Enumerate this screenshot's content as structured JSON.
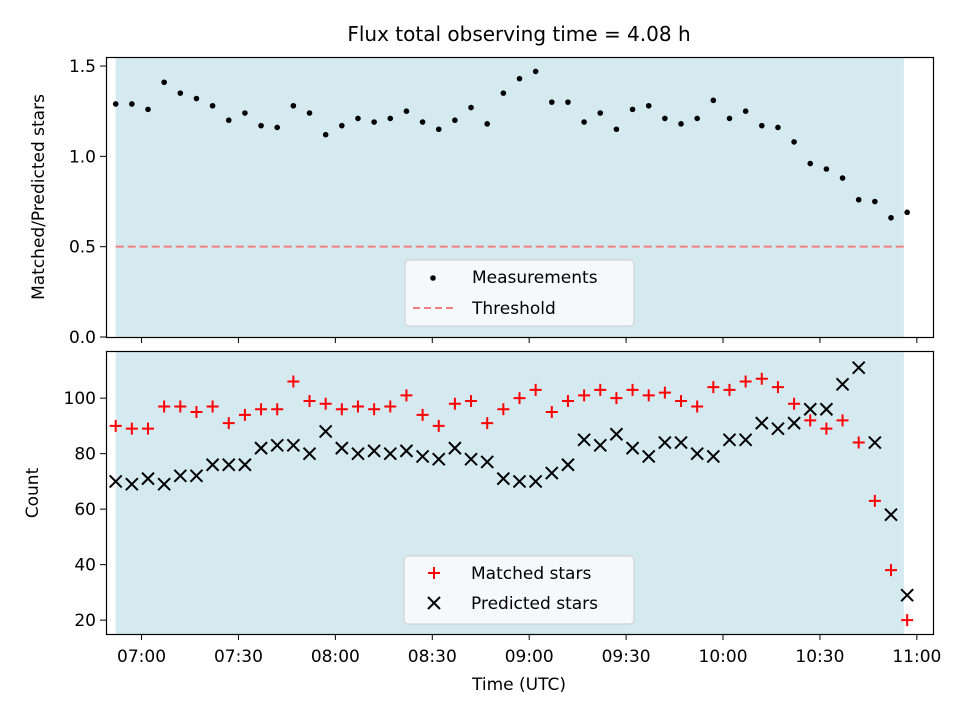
{
  "title": "Flux total observing time = 4.08 h",
  "xlabel": "Time (UTC)",
  "x_tick_labels": [
    "07:00",
    "07:30",
    "08:00",
    "08:30",
    "09:00",
    "09:30",
    "10:00",
    "10:30",
    "11:00"
  ],
  "colors": {
    "span": "#d4eaf0",
    "threshold": "#f08080",
    "matched": "#ff0000",
    "predicted": "#000000",
    "measurement": "#000000"
  },
  "chart_data": [
    {
      "type": "scatter",
      "name": "ratio",
      "ylabel": "Matched/Predicted stars",
      "ylim": [
        0,
        1.55
      ],
      "y_ticks": [
        0,
        0.5,
        1.0,
        1.5
      ],
      "y_tick_labels": [
        "0.0",
        "0.5",
        "1.0",
        "1.5"
      ],
      "xlim": [
        "06:49",
        "11:05"
      ],
      "shaded_span": [
        "06:52",
        "10:56"
      ],
      "legend": "bottom-center",
      "legend_labels": [
        "Measurements",
        "Threshold"
      ],
      "threshold": 0.5,
      "x": [
        "06:52",
        "06:57",
        "07:02",
        "07:07",
        "07:12",
        "07:17",
        "07:22",
        "07:27",
        "07:32",
        "07:37",
        "07:42",
        "07:47",
        "07:52",
        "07:57",
        "08:02",
        "08:07",
        "08:12",
        "08:17",
        "08:22",
        "08:27",
        "08:32",
        "08:37",
        "08:42",
        "08:47",
        "08:52",
        "08:57",
        "09:02",
        "09:07",
        "09:12",
        "09:17",
        "09:22",
        "09:27",
        "09:32",
        "09:37",
        "09:42",
        "09:47",
        "09:52",
        "09:57",
        "10:02",
        "10:07",
        "10:12",
        "10:17",
        "10:22",
        "10:27",
        "10:32",
        "10:37",
        "10:42",
        "10:47",
        "10:52",
        "10:57"
      ],
      "values": [
        1.29,
        1.29,
        1.26,
        1.41,
        1.35,
        1.32,
        1.28,
        1.2,
        1.24,
        1.17,
        1.16,
        1.28,
        1.24,
        1.12,
        1.17,
        1.21,
        1.19,
        1.21,
        1.25,
        1.19,
        1.15,
        1.2,
        1.27,
        1.18,
        1.35,
        1.43,
        1.47,
        1.3,
        1.3,
        1.19,
        1.24,
        1.15,
        1.26,
        1.28,
        1.21,
        1.18,
        1.21,
        1.31,
        1.21,
        1.25,
        1.17,
        1.16,
        1.08,
        0.96,
        0.93,
        0.88,
        0.76,
        0.75,
        0.66,
        0.69
      ]
    },
    {
      "type": "scatter",
      "name": "counts",
      "ylabel": "Count",
      "ylim": [
        15,
        117
      ],
      "y_ticks": [
        20,
        40,
        60,
        80,
        100
      ],
      "y_tick_labels": [
        "20",
        "40",
        "60",
        "80",
        "100"
      ],
      "xlim": [
        "06:49",
        "11:05"
      ],
      "shaded_span": [
        "06:52",
        "10:56"
      ],
      "legend": "bottom-center",
      "x": [
        "06:52",
        "06:57",
        "07:02",
        "07:07",
        "07:12",
        "07:17",
        "07:22",
        "07:27",
        "07:32",
        "07:37",
        "07:42",
        "07:47",
        "07:52",
        "07:57",
        "08:02",
        "08:07",
        "08:12",
        "08:17",
        "08:22",
        "08:27",
        "08:32",
        "08:37",
        "08:42",
        "08:47",
        "08:52",
        "08:57",
        "09:02",
        "09:07",
        "09:12",
        "09:17",
        "09:22",
        "09:27",
        "09:32",
        "09:37",
        "09:42",
        "09:47",
        "09:52",
        "09:57",
        "10:02",
        "10:07",
        "10:12",
        "10:17",
        "10:22",
        "10:27",
        "10:32",
        "10:37",
        "10:42",
        "10:47",
        "10:52",
        "10:57"
      ],
      "series": [
        {
          "name": "Matched stars",
          "marker": "plus",
          "values": [
            90,
            89,
            89,
            97,
            97,
            95,
            97,
            91,
            94,
            96,
            96,
            106,
            99,
            98,
            96,
            97,
            96,
            97,
            101,
            94,
            90,
            98,
            99,
            91,
            96,
            100,
            103,
            95,
            99,
            101,
            103,
            100,
            103,
            101,
            102,
            99,
            97,
            104,
            103,
            106,
            107,
            104,
            98,
            92,
            89,
            92,
            84,
            63,
            38,
            20
          ]
        },
        {
          "name": "Predicted stars",
          "marker": "x",
          "values": [
            70,
            69,
            71,
            69,
            72,
            72,
            76,
            76,
            76,
            82,
            83,
            83,
            80,
            88,
            82,
            80,
            81,
            80,
            81,
            79,
            78,
            82,
            78,
            77,
            71,
            70,
            70,
            73,
            76,
            85,
            83,
            87,
            82,
            79,
            84,
            84,
            80,
            79,
            85,
            85,
            91,
            89,
            91,
            96,
            96,
            105,
            111,
            84,
            58,
            29
          ]
        }
      ]
    }
  ]
}
